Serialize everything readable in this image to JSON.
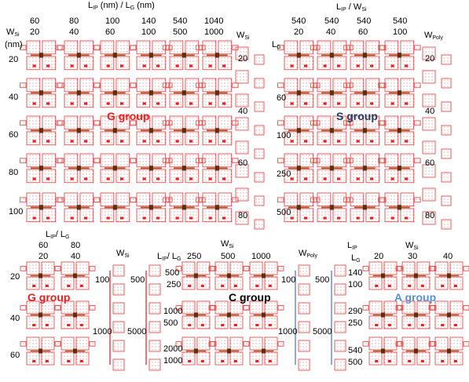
{
  "colors": {
    "pad_outline": "#e23b3b",
    "pad_dot": "#e25050",
    "lead": "#a55a28",
    "gate": "#5a3010",
    "g_group": "#ea2020",
    "s_group": "#1e3a5f",
    "c_group": "#000000",
    "a_group": "#5b8fd6",
    "bracket_red": "#d42020",
    "bracket_blue": "#4a6fc8"
  },
  "top_left": {
    "axis_title": {
      "main": "L",
      "sub1": "IP",
      "mid": " (nm) / L",
      "sub2": "G",
      "end": " (nm)"
    },
    "row_title": {
      "main": "W",
      "sub": "Si"
    },
    "row_unit": "(nm)",
    "columns": [
      {
        "lip": "60",
        "lg": "20"
      },
      {
        "lip": "80",
        "lg": "40"
      },
      {
        "lip": "100",
        "lg": "60"
      },
      {
        "lip": "140",
        "lg": "100"
      },
      {
        "lip": "540",
        "lg": "500"
      },
      {
        "lip": "1040",
        "lg": "1000"
      }
    ],
    "rows": [
      "20",
      "40",
      "60",
      "80",
      "100"
    ],
    "group": "G group",
    "side_title": {
      "main": "W",
      "sub": "Si"
    },
    "side_values": [
      "20",
      "40",
      "60",
      "80"
    ]
  },
  "top_right": {
    "axis_title": {
      "main": "L",
      "sub1": "IP",
      "mid": "  / W",
      "sub2": "Si"
    },
    "row_title": {
      "main": "L",
      "sub": "G"
    },
    "columns": [
      {
        "lip": "540",
        "wsi": "20"
      },
      {
        "lip": "540",
        "wsi": "40"
      },
      {
        "lip": "540",
        "wsi": "60"
      },
      {
        "lip": "540",
        "wsi": "100"
      }
    ],
    "rows": [
      "60",
      "100",
      "250",
      "500"
    ],
    "group": "S group",
    "side_title": {
      "main": "W",
      "sub": "Poly"
    },
    "side_values": [
      "20",
      "40",
      "60",
      "80"
    ]
  },
  "bottom_left": {
    "axis_title": {
      "main": "L",
      "sub1": "IP",
      "mid": "/ L",
      "sub2": "G"
    },
    "columns": [
      {
        "lip": "60",
        "lg": "20"
      },
      {
        "lip": "80",
        "lg": "40"
      }
    ],
    "rows": [
      "20",
      "40",
      "60"
    ],
    "group": "G group",
    "side_title": {
      "main": "W",
      "sub": "Si"
    },
    "side_values_a": [
      "100",
      "1000"
    ],
    "side_values_b": [
      "500",
      "5000"
    ]
  },
  "bottom_mid": {
    "axis_title_lip": {
      "main": "L",
      "sub1": "IP",
      "mid": "/ L",
      "sub2": "G"
    },
    "axis_title_wsi": {
      "main": "W",
      "sub": "Si"
    },
    "wsi_values": [
      "250",
      "500",
      "1000"
    ],
    "row_values": [
      "500",
      "250",
      "1000",
      "500",
      "2000",
      "1000"
    ],
    "group": "C group"
  },
  "bottom_right": {
    "wpoly_title": {
      "main": "W",
      "sub": "Poly"
    },
    "wpoly_a": [
      "100",
      "1000"
    ],
    "wpoly_b": [
      "500",
      "5000"
    ],
    "lip_title": {
      "main": "L",
      "sub": "IP"
    },
    "lg_title": {
      "main": "L",
      "sub": "G"
    },
    "wsi_title": {
      "main": "W",
      "sub": "Si"
    },
    "wsi_values": [
      "20",
      "30",
      "40"
    ],
    "row_values": [
      "140",
      "100",
      "290",
      "250",
      "540",
      "500"
    ],
    "group": "A group"
  }
}
